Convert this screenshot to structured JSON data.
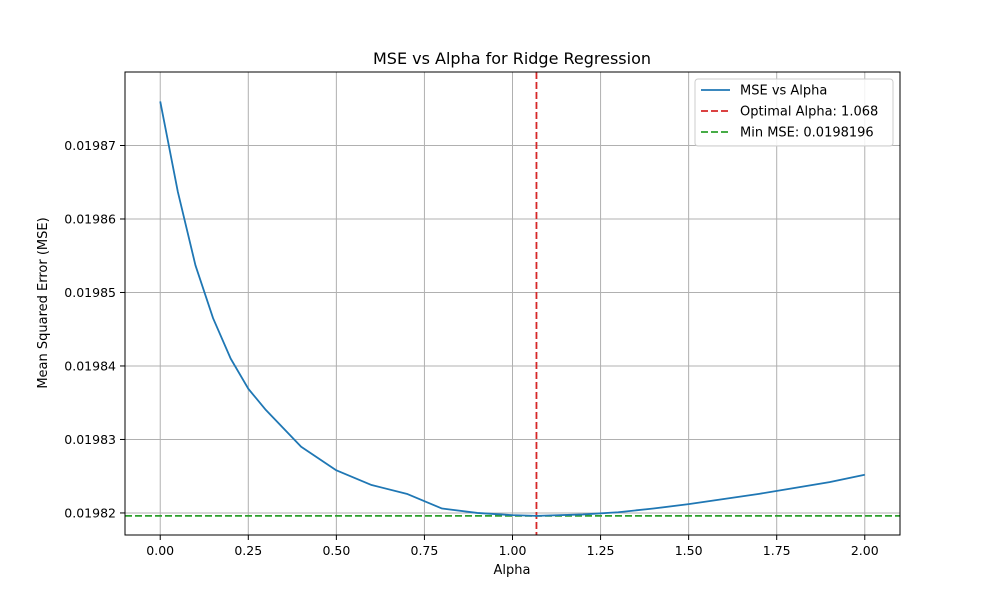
{
  "chart_data": {
    "type": "line",
    "title": "MSE vs Alpha for Ridge Regression",
    "xlabel": "Alpha",
    "ylabel": "Mean Squared Error (MSE)",
    "xlim": [
      -0.1,
      2.1
    ],
    "ylim": [
      0.019817,
      0.01988
    ],
    "x_ticks": [
      0.0,
      0.25,
      0.5,
      0.75,
      1.0,
      1.25,
      1.5,
      1.75,
      2.0
    ],
    "x_tick_labels": [
      "0.00",
      "0.25",
      "0.50",
      "0.75",
      "1.00",
      "1.25",
      "1.50",
      "1.75",
      "2.00"
    ],
    "y_ticks": [
      0.01982,
      0.01983,
      0.01984,
      0.01985,
      0.01986,
      0.01987
    ],
    "y_tick_labels": [
      "0.01982",
      "0.01983",
      "0.01984",
      "0.01985",
      "0.01986",
      "0.01987"
    ],
    "grid": true,
    "legend_position": "top-right",
    "series": [
      {
        "name": "MSE vs Alpha",
        "color": "#1f77b4",
        "style": "solid",
        "x": [
          0.0,
          0.05,
          0.1,
          0.15,
          0.2,
          0.25,
          0.3,
          0.4,
          0.5,
          0.6,
          0.7,
          0.8,
          0.9,
          1.0,
          1.068,
          1.2,
          1.3,
          1.4,
          1.5,
          1.6,
          1.7,
          1.8,
          1.9,
          2.0
        ],
        "y": [
          0.019876,
          0.0198637,
          0.0198537,
          0.0198465,
          0.019841,
          0.0198369,
          0.019834,
          0.019829,
          0.0198258,
          0.0198238,
          0.0198226,
          0.0198206,
          0.01982,
          0.0198197,
          0.0198196,
          0.0198198,
          0.0198201,
          0.0198206,
          0.0198212,
          0.0198219,
          0.0198226,
          0.0198234,
          0.0198242,
          0.0198252
        ]
      }
    ],
    "reference_lines": [
      {
        "name": "Optimal Alpha: 1.068",
        "orientation": "vertical",
        "value": 1.068,
        "color": "#d62728",
        "style": "dashed"
      },
      {
        "name": "Min MSE: 0.0198196",
        "orientation": "horizontal",
        "value": 0.0198196,
        "color": "#2ca02c",
        "style": "dashed"
      }
    ]
  }
}
